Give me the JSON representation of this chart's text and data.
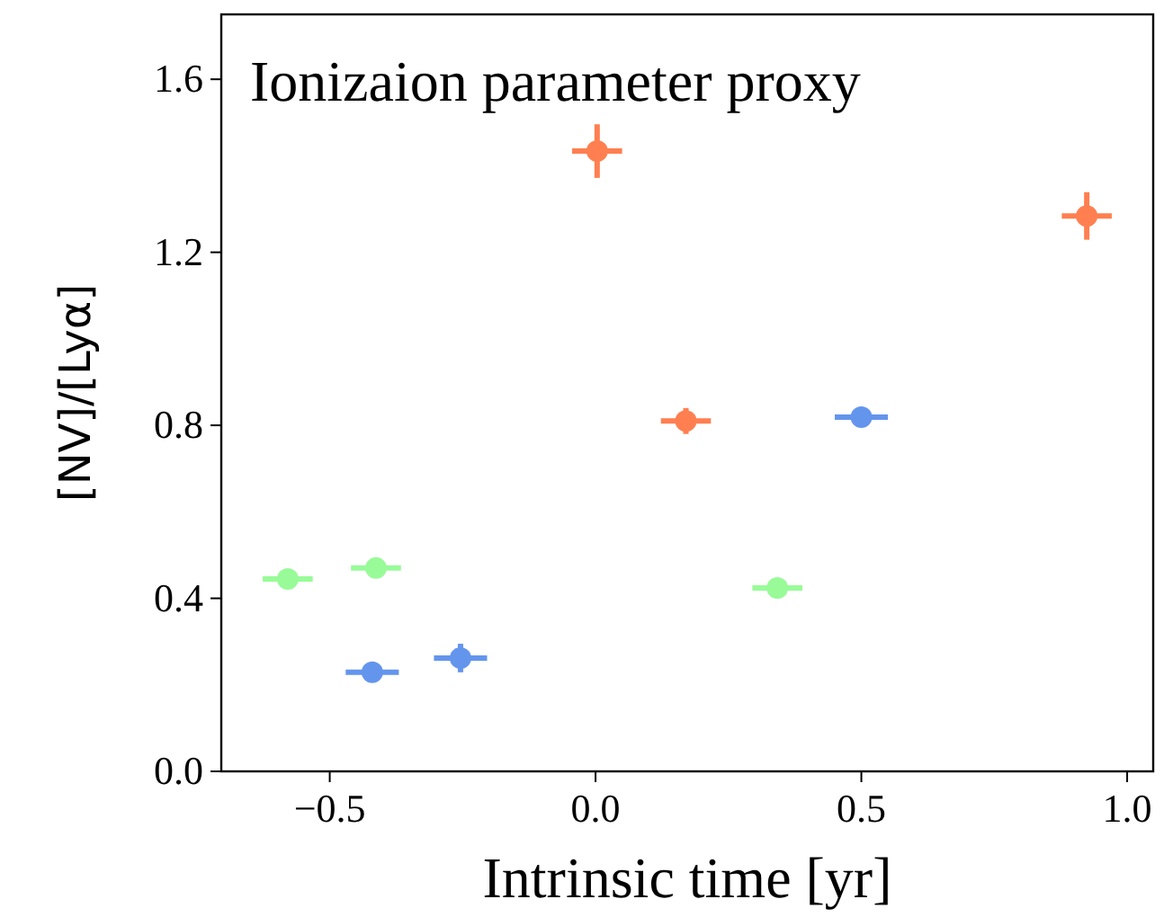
{
  "chart_data": {
    "type": "scatter",
    "title": "Ionizaion parameter proxy",
    "xlabel": "Intrinsic time [yr]",
    "ylabel": "[NV]/[Lyα]",
    "xlim": [
      -0.704,
      1.049
    ],
    "ylim": [
      0,
      1.75
    ],
    "xticks": [
      {
        "value": -0.5,
        "label": "−0.5"
      },
      {
        "value": 0,
        "label": "0.0"
      },
      {
        "value": 0.5,
        "label": "0.5"
      },
      {
        "value": 1,
        "label": "1.0"
      }
    ],
    "yticks": [
      {
        "value": 0,
        "label": "0.0"
      },
      {
        "value": 0.4,
        "label": "0.4"
      },
      {
        "value": 0.8,
        "label": "0.8"
      },
      {
        "value": 1.2,
        "label": "1.2"
      },
      {
        "value": 1.6,
        "label": "1.6"
      }
    ],
    "grid": false,
    "marker": "circle",
    "series": [
      {
        "color": "#ff7f50",
        "x": [
          0.003,
          0.924,
          0.17
        ],
        "values": [
          1.434,
          1.284,
          0.81
        ],
        "errors": [
          0.062,
          0.055,
          0.03
        ],
        "xerrors": [
          0.047,
          0.047,
          0.047
        ]
      },
      {
        "color": "#6495ed",
        "x": [
          0.5,
          -0.42,
          -0.254
        ],
        "values": [
          0.819,
          0.229,
          0.262
        ],
        "errors": [
          0.01,
          0.01,
          0.033
        ],
        "xerrors": [
          0.05,
          0.05,
          0.05
        ]
      },
      {
        "color": "#98fb98",
        "x": [
          -0.579,
          -0.413,
          0.342
        ],
        "values": [
          0.445,
          0.47,
          0.424
        ],
        "errors": [
          0.01,
          0.01,
          0.01
        ],
        "xerrors": [
          0.047,
          0.047,
          0.047
        ]
      }
    ]
  }
}
